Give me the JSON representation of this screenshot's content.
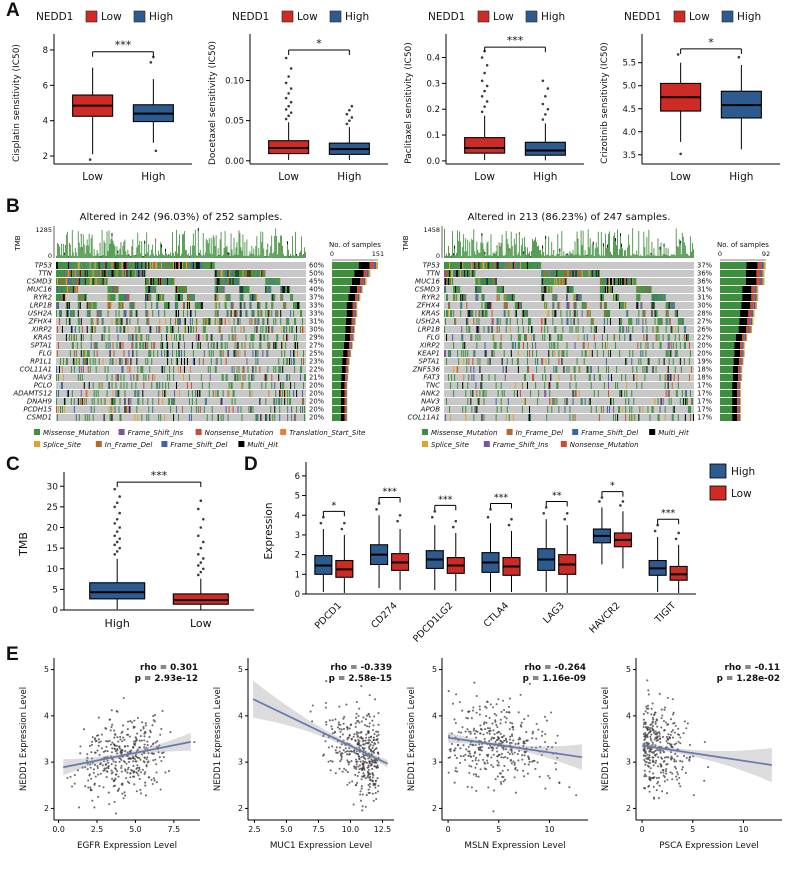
{
  "labels": {
    "A": "A",
    "B": "B",
    "C": "C",
    "D": "D",
    "E": "E"
  },
  "palette": {
    "low_red": "#CE2B26",
    "high_blue": "#2E5B8F",
    "scatter_line": "#6379AE",
    "band_gray": "#9a9a9a",
    "annotation_red": "#DC2A20",
    "grid_bg": "#C8C8C8",
    "bar_green": "#3D8F3D",
    "point_dark": "#3c3c3c"
  },
  "mutation_colors": {
    "Missense_Mutation": "#3D8F3D",
    "Frame_Shift_Ins": "#7D54A0",
    "Nonsense_Mutation": "#CF4A31",
    "Translation_Start_Site": "#E0803C",
    "Splice_Site": "#DFA32C",
    "In_Frame_Del": "#B4692E",
    "Frame_Shift_Del": "#3C64A6",
    "Multi_Hit": "#000000"
  },
  "chart_data": [
    {
      "id": "a1",
      "type": "boxplot",
      "panel": "A",
      "legend_title": "NEDD1",
      "groups": [
        "Low",
        "High"
      ],
      "group_colors": [
        "low_red",
        "high_blue"
      ],
      "ylabel": "Cisplatin sensitivity (IC50)",
      "ylim": [
        1.55,
        8.45
      ],
      "yticks": [
        2,
        4,
        6,
        8
      ],
      "ytick_labels": [
        "2",
        "4",
        "6",
        "8"
      ],
      "sig": "***",
      "bracket_v": 7.9,
      "boxes": [
        {
          "min": 2.1,
          "q1": 4.25,
          "med": 4.85,
          "q3": 5.45,
          "max": 7.0,
          "outliers": [
            1.8
          ]
        },
        {
          "min": 2.75,
          "q1": 3.95,
          "med": 4.4,
          "q3": 4.9,
          "max": 6.35,
          "outliers": [
            7.3,
            7.6,
            2.3
          ]
        }
      ]
    },
    {
      "id": "a2",
      "type": "boxplot",
      "panel": "A",
      "legend_title": "NEDD1",
      "groups": [
        "Low",
        "High"
      ],
      "group_colors": [
        "low_red",
        "high_blue"
      ],
      "ylabel": "Docetaxel sensitivity (IC50)",
      "ylim": [
        -0.004,
        0.148
      ],
      "yticks": [
        0.0,
        0.05,
        0.1
      ],
      "ytick_labels": [
        "0.00",
        "0.05",
        "0.10"
      ],
      "sig": "*",
      "bracket_v": 0.138,
      "boxes": [
        {
          "min": 0.001,
          "q1": 0.009,
          "med": 0.016,
          "q3": 0.025,
          "max": 0.048,
          "outliers": [
            0.052,
            0.056,
            0.06,
            0.064,
            0.068,
            0.073,
            0.078,
            0.084,
            0.09,
            0.097,
            0.105,
            0.115,
            0.128
          ]
        },
        {
          "min": 0.001,
          "q1": 0.008,
          "med": 0.0145,
          "q3": 0.022,
          "max": 0.042,
          "outliers": [
            0.046,
            0.05,
            0.054,
            0.058,
            0.063,
            0.068
          ]
        }
      ]
    },
    {
      "id": "a3",
      "type": "boxplot",
      "panel": "A",
      "legend_title": "NEDD1",
      "groups": [
        "Low",
        "High"
      ],
      "group_colors": [
        "low_red",
        "high_blue"
      ],
      "ylabel": "Paclitaxel sensitivity (IC50)",
      "ylim": [
        -0.012,
        0.46
      ],
      "yticks": [
        0.0,
        0.1,
        0.2,
        0.3,
        0.4
      ],
      "ytick_labels": [
        "0.0",
        "0.1",
        "0.2",
        "0.3",
        "0.4"
      ],
      "sig": "***",
      "bracket_v": 0.44,
      "boxes": [
        {
          "min": 0.003,
          "q1": 0.03,
          "med": 0.05,
          "q3": 0.09,
          "max": 0.175,
          "outliers": [
            0.19,
            0.21,
            0.23,
            0.25,
            0.27,
            0.29,
            0.31,
            0.34,
            0.37,
            0.4,
            0.425
          ]
        },
        {
          "min": 0.002,
          "q1": 0.022,
          "med": 0.04,
          "q3": 0.072,
          "max": 0.145,
          "outliers": [
            0.16,
            0.18,
            0.2,
            0.22,
            0.25,
            0.28,
            0.31
          ]
        }
      ]
    },
    {
      "id": "a4",
      "type": "boxplot",
      "panel": "A",
      "legend_title": "NEDD1",
      "groups": [
        "Low",
        "High"
      ],
      "group_colors": [
        "low_red",
        "high_blue"
      ],
      "ylabel": "Crizotinib sensitivity (IC50)",
      "ylim": [
        3.3,
        5.95
      ],
      "yticks": [
        3.5,
        4.0,
        4.5,
        5.0,
        5.5
      ],
      "ytick_labels": [
        "3.5",
        "4.0",
        "4.5",
        "5.0",
        "5.5"
      ],
      "sig": "*",
      "bracket_v": 5.8,
      "boxes": [
        {
          "min": 3.78,
          "q1": 4.45,
          "med": 4.75,
          "q3": 5.05,
          "max": 5.5,
          "outliers": [
            5.68,
            3.52
          ]
        },
        {
          "min": 3.62,
          "q1": 4.3,
          "med": 4.58,
          "q3": 4.88,
          "max": 5.45,
          "outliers": [
            5.62
          ]
        }
      ]
    },
    {
      "id": "b_left",
      "type": "oncoprint",
      "seed": 11,
      "title": "Altered in 242 (96.03%) of 252 samples.",
      "n_samples": 252,
      "tmb_label": "TMB",
      "tmb_max": "1285",
      "tmb_min": "0",
      "side_label": "No. of samples",
      "side_min": "0",
      "side_max": "151",
      "genes": [
        {
          "name": "TP53",
          "pct": 60
        },
        {
          "name": "TTN",
          "pct": 50
        },
        {
          "name": "CSMD3",
          "pct": 45
        },
        {
          "name": "MUC16",
          "pct": 40
        },
        {
          "name": "RYR2",
          "pct": 37
        },
        {
          "name": "LRP1B",
          "pct": 33
        },
        {
          "name": "USH2A",
          "pct": 33
        },
        {
          "name": "ZFHX4",
          "pct": 31
        },
        {
          "name": "XIRP2",
          "pct": 30
        },
        {
          "name": "KRAS",
          "pct": 29
        },
        {
          "name": "SPTA1",
          "pct": 27
        },
        {
          "name": "FLG",
          "pct": 25
        },
        {
          "name": "RP1L1",
          "pct": 23
        },
        {
          "name": "COL11A1",
          "pct": 22
        },
        {
          "name": "NAV3",
          "pct": 21
        },
        {
          "name": "PCLO",
          "pct": 20
        },
        {
          "name": "ADAMTS12",
          "pct": 20
        },
        {
          "name": "DNAH9",
          "pct": 20
        },
        {
          "name": "PCDH15",
          "pct": 20
        },
        {
          "name": "CSMD1",
          "pct": 20
        }
      ],
      "legend_rows": [
        [
          "Missense_Mutation",
          "Frame_Shift_Ins",
          "Nonsense_Mutation",
          "Translation_Start_Site"
        ],
        [
          "Splice_Site",
          "In_Frame_Del",
          "Frame_Shift_Del",
          "Multi_Hit"
        ]
      ]
    },
    {
      "id": "b_right",
      "type": "oncoprint",
      "seed": 29,
      "title": "Altered in 213 (86.23%) of 247 samples.",
      "n_samples": 247,
      "tmb_label": "TMB",
      "tmb_max": "1458",
      "tmb_min": "0",
      "side_label": "No. of samples",
      "side_min": "0",
      "side_max": "92",
      "genes": [
        {
          "name": "TP53",
          "pct": 37
        },
        {
          "name": "TTN",
          "pct": 36
        },
        {
          "name": "MUC16",
          "pct": 36
        },
        {
          "name": "CSMD3",
          "pct": 31
        },
        {
          "name": "RYR2",
          "pct": 31
        },
        {
          "name": "ZFHX4",
          "pct": 30
        },
        {
          "name": "KRAS",
          "pct": 28
        },
        {
          "name": "USH2A",
          "pct": 27
        },
        {
          "name": "LRP1B",
          "pct": 26
        },
        {
          "name": "FLG",
          "pct": 22
        },
        {
          "name": "XIRP2",
          "pct": 20
        },
        {
          "name": "KEAP1",
          "pct": 20
        },
        {
          "name": "SPTA1",
          "pct": 19
        },
        {
          "name": "ZNF536",
          "pct": 18
        },
        {
          "name": "FAT3",
          "pct": 18
        },
        {
          "name": "TNC",
          "pct": 17
        },
        {
          "name": "ANK2",
          "pct": 17
        },
        {
          "name": "NAV3",
          "pct": 17
        },
        {
          "name": "APOB",
          "pct": 17
        },
        {
          "name": "COL11A1",
          "pct": 17
        }
      ],
      "legend_rows": [
        [
          "Missense_Mutation",
          "In_Frame_Del",
          "Frame_Shift_Del",
          "Multi_Hit"
        ],
        [
          "Splice_Site",
          "Frame_Shift_Ins",
          "Nonsense_Mutation"
        ]
      ]
    },
    {
      "id": "c",
      "type": "boxplot",
      "panel": "C",
      "groups": [
        "High",
        "Low"
      ],
      "group_colors": [
        "high_blue",
        "low_red"
      ],
      "ylabel": "TMB",
      "ylim": [
        0,
        32
      ],
      "yticks": [
        0,
        5,
        10,
        15,
        20,
        25,
        30
      ],
      "ytick_labels": [
        "0",
        "5",
        "10",
        "15",
        "20",
        "25",
        "30"
      ],
      "sig": "***",
      "bracket_v": 31,
      "boxes": [
        {
          "min": 0.2,
          "q1": 2.7,
          "med": 4.3,
          "q3": 6.6,
          "max": 12.4,
          "outliers": [
            13.5,
            14.2,
            15,
            15.8,
            16.5,
            17.3,
            18,
            19,
            20,
            21,
            22,
            23.5,
            25,
            26,
            27.5,
            29.3
          ]
        },
        {
          "min": 0.1,
          "q1": 1.4,
          "med": 2.4,
          "q3": 3.9,
          "max": 7.6,
          "outliers": [
            8.5,
            9.2,
            10,
            10.8,
            11.5,
            12.5,
            13.5,
            15,
            16.5,
            18,
            20,
            22,
            24.5,
            26.5
          ]
        }
      ]
    },
    {
      "id": "d",
      "type": "grouped_box",
      "ylabel": "Expression",
      "categories": [
        "PDCD1",
        "CD274",
        "PDCD1LG2",
        "CTLA4",
        "LAG3",
        "HAVCR2",
        "TIGIT"
      ],
      "sig": [
        "*",
        "***",
        "***",
        "***",
        "**",
        "*",
        "***"
      ],
      "ylim": [
        0,
        6.4
      ],
      "yticks": [
        0,
        1,
        2,
        3,
        4,
        5,
        6
      ],
      "legend": [
        "High",
        "Low"
      ],
      "series": [
        {
          "name": "High",
          "color": "high_blue",
          "boxes": [
            {
              "min": 0.1,
              "q1": 1.0,
              "med": 1.45,
              "q3": 1.95,
              "max": 3.3,
              "outliers": [
                3.6,
                3.9
              ]
            },
            {
              "min": 0.3,
              "q1": 1.5,
              "med": 2.0,
              "q3": 2.5,
              "max": 4.0,
              "outliers": [
                4.3,
                4.6
              ]
            },
            {
              "min": 0.2,
              "q1": 1.3,
              "med": 1.75,
              "q3": 2.2,
              "max": 3.5,
              "outliers": [
                3.9,
                4.2
              ]
            },
            {
              "min": 0.1,
              "q1": 1.1,
              "med": 1.6,
              "q3": 2.1,
              "max": 3.6,
              "outliers": [
                3.9,
                4.3
              ]
            },
            {
              "min": 0.1,
              "q1": 1.2,
              "med": 1.75,
              "q3": 2.3,
              "max": 3.8,
              "outliers": [
                4.1,
                4.4
              ]
            },
            {
              "min": 1.5,
              "q1": 2.6,
              "med": 2.95,
              "q3": 3.3,
              "max": 4.4,
              "outliers": [
                4.7,
                4.9
              ]
            },
            {
              "min": 0.1,
              "q1": 0.95,
              "med": 1.3,
              "q3": 1.7,
              "max": 2.9,
              "outliers": [
                3.2,
                3.5
              ]
            }
          ]
        },
        {
          "name": "Low",
          "color": "low_red",
          "boxes": [
            {
              "min": 0.05,
              "q1": 0.85,
              "med": 1.25,
              "q3": 1.7,
              "max": 3.0,
              "outliers": [
                3.3,
                3.6
              ]
            },
            {
              "min": 0.2,
              "q1": 1.2,
              "med": 1.6,
              "q3": 2.05,
              "max": 3.3,
              "outliers": [
                3.7,
                4.0
              ]
            },
            {
              "min": 0.15,
              "q1": 1.05,
              "med": 1.45,
              "q3": 1.85,
              "max": 3.1,
              "outliers": [
                3.4,
                3.7
              ]
            },
            {
              "min": 0.1,
              "q1": 0.95,
              "med": 1.4,
              "q3": 1.85,
              "max": 3.2,
              "outliers": [
                3.5,
                3.8
              ]
            },
            {
              "min": 0.05,
              "q1": 1.0,
              "med": 1.5,
              "q3": 2.0,
              "max": 3.5,
              "outliers": [
                3.8,
                4.1
              ]
            },
            {
              "min": 1.3,
              "q1": 2.4,
              "med": 2.75,
              "q3": 3.1,
              "max": 4.2,
              "outliers": [
                4.5,
                4.7
              ]
            },
            {
              "min": 0.05,
              "q1": 0.7,
              "med": 1.0,
              "q3": 1.4,
              "max": 2.5,
              "outliers": [
                2.8,
                3.1
              ]
            }
          ]
        }
      ]
    },
    {
      "id": "e1",
      "type": "scatter",
      "seed": 101,
      "xlabel": "EGFR Expression Level",
      "ylabel": "NEDD1 Expression Level",
      "annotation": [
        "rho = 0.301",
        "p = 2.93e-12"
      ],
      "xlim": [
        -0.3,
        9.2
      ],
      "xticks": [
        0,
        2.5,
        5,
        7.5
      ],
      "xtick_labels": [
        "0.0",
        "2.5",
        "5.0",
        "7.5"
      ],
      "ylim": [
        1.75,
        5.25
      ],
      "yticks": [
        2,
        3,
        4,
        5
      ],
      "n": 380,
      "x_base": 4.3,
      "x_sd": 1.4,
      "x_skew": 0,
      "x_clip": [
        0.2,
        8.9
      ],
      "intercept": 2.87,
      "slope": 0.066,
      "noise": 0.42,
      "line_x": [
        0.3,
        8.6
      ],
      "band0": 0.05,
      "band1": 0.7,
      "band_center": 4.3
    },
    {
      "id": "e2",
      "type": "scatter",
      "seed": 202,
      "xlabel": "MUC1 Expression Level",
      "ylabel": "NEDD1 Expression Level",
      "annotation": [
        "rho = -0.339",
        "p = 2.58e-15"
      ],
      "xlim": [
        2,
        13.4
      ],
      "xticks": [
        2.5,
        5,
        7.5,
        10,
        12.5
      ],
      "xtick_labels": [
        "2.5",
        "5.0",
        "7.5",
        "10.0",
        "12.5"
      ],
      "ylim": [
        1.75,
        5.25
      ],
      "yticks": [
        2,
        3,
        4,
        5
      ],
      "n": 380,
      "x_base": 12.2,
      "x_sd": 1.9,
      "x_skew": -1,
      "x_clip": [
        2.3,
        12.9
      ],
      "intercept": 4.68,
      "slope": -0.133,
      "noise": 0.42,
      "line_x": [
        2.4,
        12.9
      ],
      "band0": 0.05,
      "band1": 0.7,
      "band_center": 10.5
    },
    {
      "id": "e3",
      "type": "scatter",
      "seed": 303,
      "xlabel": "MSLN Expression Level",
      "ylabel": "NEDD1 Expression Level",
      "annotation": [
        "rho = -0.264",
        "p = 1.16e-09"
      ],
      "xlim": [
        -0.6,
        13.8
      ],
      "xticks": [
        0,
        5,
        10
      ],
      "xtick_labels": [
        "0",
        "5",
        "10"
      ],
      "ylim": [
        1.75,
        5.25
      ],
      "yticks": [
        2,
        3,
        4,
        5
      ],
      "n": 380,
      "x_base": 4.8,
      "x_sd": 2.6,
      "x_skew": 0,
      "x_clip": [
        0,
        13.2
      ],
      "intercept": 3.53,
      "slope": -0.032,
      "noise": 0.42,
      "line_x": [
        0,
        13.2
      ],
      "band0": 0.04,
      "band1": 0.7,
      "band_center": 4.8
    },
    {
      "id": "e4",
      "type": "scatter",
      "seed": 404,
      "xlabel": "PSCA Expression Level",
      "ylabel": "NEDD1 Expression Level",
      "annotation": [
        "rho = -0.11",
        "p = 1.28e-02"
      ],
      "xlim": [
        -0.6,
        13.8
      ],
      "xticks": [
        0,
        5,
        10
      ],
      "xtick_labels": [
        "0",
        "5",
        "10"
      ],
      "ylim": [
        1.75,
        5.25
      ],
      "yticks": [
        2,
        3,
        4,
        5
      ],
      "n": 330,
      "x_base": 0.15,
      "x_sd": 2.1,
      "x_skew": 1,
      "x_clip": [
        0,
        13.2
      ],
      "intercept": 3.36,
      "slope": -0.033,
      "noise": 0.48,
      "line_x": [
        0,
        12.8
      ],
      "band0": 0.05,
      "band1": 0.6,
      "band_center": 2.3
    }
  ]
}
